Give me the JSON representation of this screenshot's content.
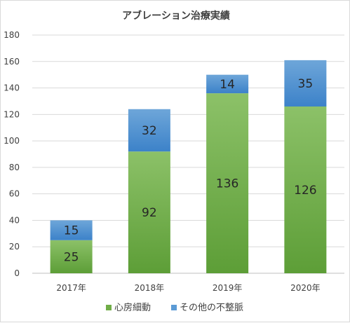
{
  "chart_data": {
    "type": "bar",
    "stacked": true,
    "title": "アブレーション治療実績",
    "categories": [
      "2017年",
      "2018年",
      "2019年",
      "2020年"
    ],
    "series": [
      {
        "name": "心房細動",
        "values": [
          25,
          92,
          136,
          126
        ],
        "color": "#70ad47"
      },
      {
        "name": "その他の不整脈",
        "values": [
          15,
          32,
          14,
          35
        ],
        "color": "#5b9bd5"
      }
    ],
    "ylim": [
      0,
      180
    ],
    "yticks": [
      0,
      20,
      40,
      60,
      80,
      100,
      120,
      140,
      160,
      180
    ],
    "grid": true,
    "legend_position": "bottom"
  }
}
